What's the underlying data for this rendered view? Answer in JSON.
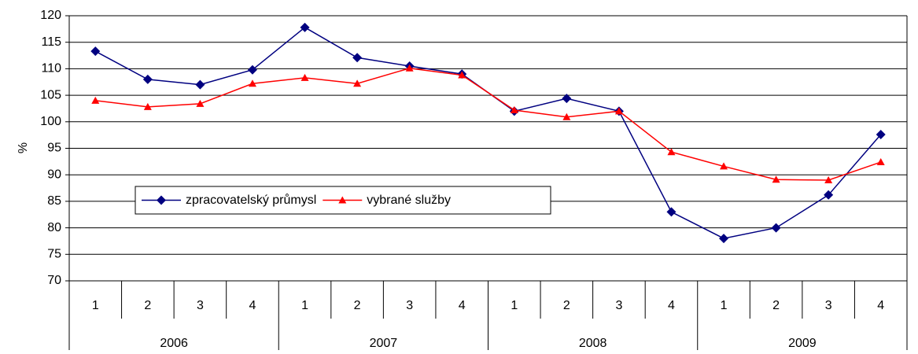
{
  "chart_data": {
    "type": "line",
    "y_label": "%",
    "categories": [
      "1",
      "2",
      "3",
      "4",
      "1",
      "2",
      "3",
      "4",
      "1",
      "2",
      "3",
      "4",
      "1",
      "2",
      "3",
      "4"
    ],
    "groups": [
      "2006",
      "2007",
      "2008",
      "2009"
    ],
    "series": [
      {
        "name": "zpracovatelský průmysl",
        "color": "#000080",
        "marker": "diamond",
        "values": [
          113.3,
          108,
          107,
          109.8,
          117.8,
          112.1,
          110.5,
          109,
          102,
          104.4,
          102,
          83,
          78,
          80,
          86.2,
          97.6
        ]
      },
      {
        "name": "vybrané služby",
        "color": "#ff0000",
        "marker": "triangle",
        "values": [
          104,
          102.8,
          103.4,
          107.2,
          108.3,
          107.2,
          110.1,
          108.8,
          102.2,
          100.9,
          102,
          94.3,
          91.6,
          89.1,
          89,
          92.4
        ]
      }
    ],
    "ylim": [
      70,
      120
    ],
    "yticks": [
      70,
      75,
      80,
      85,
      90,
      95,
      100,
      105,
      110,
      115,
      120
    ],
    "grid": true,
    "legend": "inside-left"
  }
}
